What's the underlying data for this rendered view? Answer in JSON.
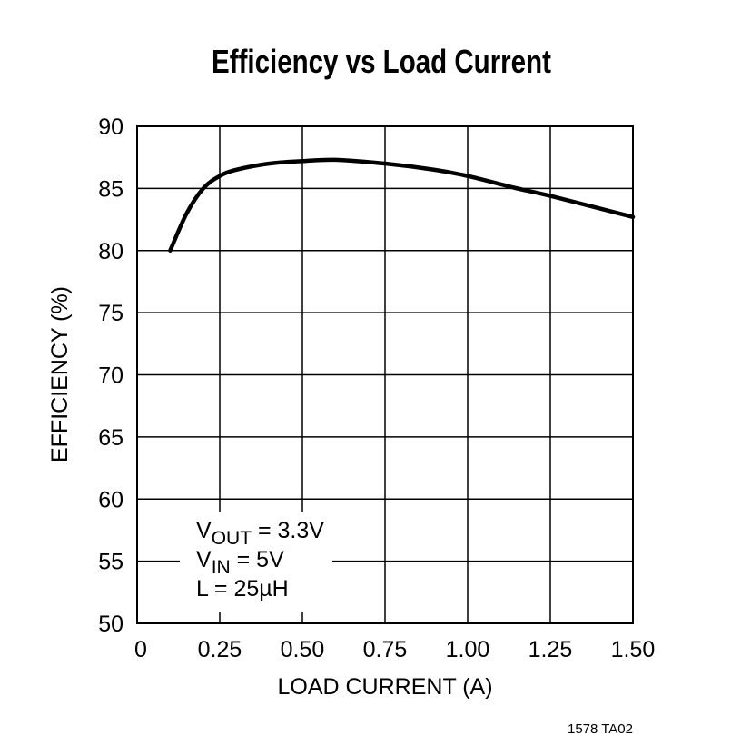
{
  "chart_data": {
    "type": "line",
    "title": "Efficiency vs Load Current",
    "xlabel": "LOAD CURRENT (A)",
    "ylabel": "EFFICIENCY (%)",
    "xlim": [
      0,
      1.5
    ],
    "ylim": [
      50,
      90
    ],
    "grid": true,
    "x_ticks": [
      "0",
      "0.25",
      "0.50",
      "0.75",
      "1.00",
      "1.25",
      "1.50"
    ],
    "x_tick_values": [
      0,
      0.25,
      0.5,
      0.75,
      1.0,
      1.25,
      1.5
    ],
    "y_ticks": [
      "50",
      "55",
      "60",
      "65",
      "70",
      "75",
      "80",
      "85",
      "90"
    ],
    "y_tick_values": [
      50,
      55,
      60,
      65,
      70,
      75,
      80,
      85,
      90
    ],
    "series": [
      {
        "name": "Efficiency",
        "x": [
          0.1,
          0.15,
          0.2,
          0.25,
          0.3,
          0.4,
          0.5,
          0.6,
          0.75,
          0.9,
          1.0,
          1.15,
          1.25,
          1.5
        ],
        "y": [
          80,
          83,
          85,
          86,
          86.5,
          87,
          87.2,
          87.3,
          87,
          86.5,
          86,
          85,
          84.4,
          82.7
        ]
      }
    ],
    "annotations": [
      {
        "main": "V",
        "sub": "OUT",
        "rest": " = 3.3V"
      },
      {
        "main": "V",
        "sub": "IN",
        "rest": " = 5V"
      },
      {
        "main": "L = 25µH",
        "sub": "",
        "rest": ""
      }
    ],
    "figure_id": "1578 TA02"
  }
}
